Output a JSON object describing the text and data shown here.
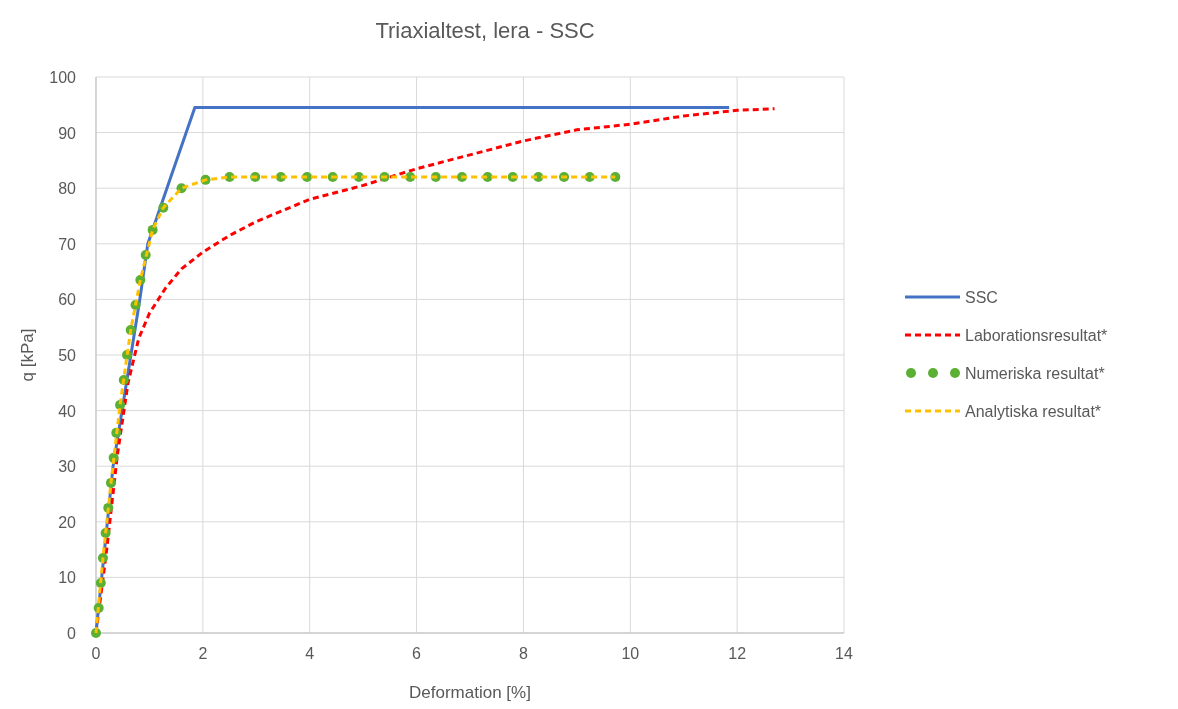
{
  "chart_data": {
    "type": "line",
    "title": "Triaxialtest, lera - SSC",
    "xlabel": "Deformation [%]",
    "ylabel": "q [kPa]",
    "xlim": [
      0,
      14
    ],
    "xticks": [
      0,
      2,
      4,
      6,
      8,
      10,
      12,
      14
    ],
    "ylim": [
      0,
      100
    ],
    "yticks": [
      0,
      10,
      20,
      30,
      40,
      50,
      60,
      70,
      80,
      90,
      100
    ],
    "grid": true,
    "legend": "right",
    "series": [
      {
        "name": "SSC",
        "color": "#4472c4",
        "line_style": "solid",
        "marker": "none",
        "x": [
          0,
          0.32,
          0.82,
          0.97,
          1.4,
          1.85,
          11.85
        ],
        "values": [
          0,
          30,
          60,
          70,
          82,
          94.5,
          94.5
        ]
      },
      {
        "name": "Laborationsresultat*",
        "color": "#ff0000",
        "line_style": "dashed",
        "marker": "none",
        "x": [
          0,
          0.2,
          0.4,
          0.6,
          0.8,
          1,
          1.3,
          1.6,
          2,
          2.5,
          3,
          3.5,
          4,
          5,
          6,
          7,
          8,
          9,
          10,
          11,
          12,
          12.7
        ],
        "values": [
          0,
          15,
          32,
          45,
          53,
          57.5,
          62,
          65.5,
          68.5,
          71.5,
          74,
          76,
          78,
          80.5,
          83.5,
          86,
          88.5,
          90.5,
          91.5,
          93,
          94,
          94.3
        ]
      },
      {
        "name": "Numeriska resultat*",
        "type": "scatter",
        "color": "#5bb033",
        "marker": "circle",
        "x": [
          0,
          0.05,
          0.09,
          0.13,
          0.18,
          0.23,
          0.28,
          0.33,
          0.38,
          0.45,
          0.52,
          0.58,
          0.65,
          0.74,
          0.83,
          0.93,
          1.06,
          1.26,
          1.6,
          2.05,
          2.5,
          2.98,
          3.46,
          3.95,
          4.43,
          4.92,
          5.4,
          5.88,
          6.36,
          6.85,
          7.33,
          7.8,
          8.28,
          8.76,
          9.24,
          9.72
        ],
        "values": [
          0,
          4.5,
          9,
          13.5,
          18,
          22.5,
          27,
          31.5,
          36,
          41,
          45.5,
          50,
          54.5,
          59,
          63.5,
          68,
          72.5,
          76.5,
          80,
          81.5,
          82,
          82,
          82,
          82,
          82,
          82,
          82,
          82,
          82,
          82,
          82,
          82,
          82,
          82,
          82,
          82
        ]
      },
      {
        "name": "Analytiska resultat*",
        "color": "#ffc000",
        "line_style": "dashed",
        "marker": "none",
        "x": [
          0,
          0.13,
          0.28,
          0.45,
          0.65,
          0.83,
          1.06,
          1.26,
          1.6,
          2.05,
          2.5,
          3,
          9.72
        ],
        "values": [
          0,
          13.5,
          27,
          41,
          54.5,
          63.5,
          72.5,
          76.5,
          80,
          81.5,
          82,
          82,
          82
        ]
      }
    ]
  }
}
